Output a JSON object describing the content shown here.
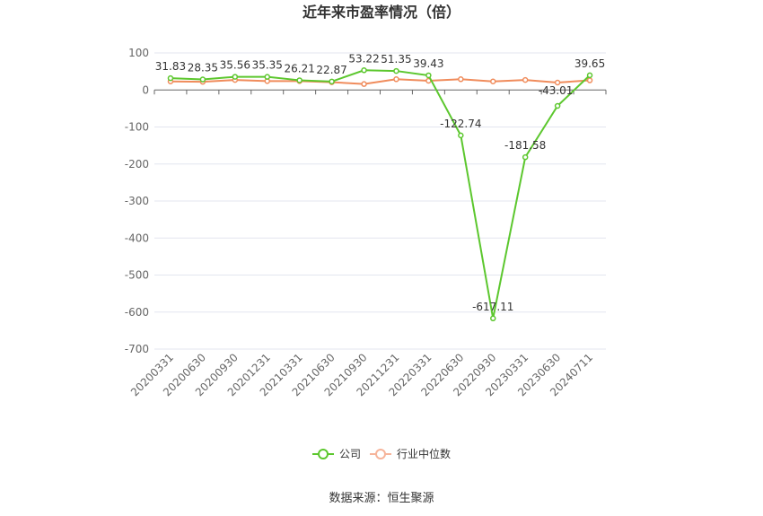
{
  "chart_data": {
    "type": "line",
    "title": "近年来市盈率情况（倍）",
    "categories": [
      "20200331",
      "20200630",
      "20200930",
      "20201231",
      "20210331",
      "20210630",
      "20210930",
      "20211231",
      "20220331",
      "20220630",
      "20220930",
      "20230331",
      "20230630",
      "20240711"
    ],
    "series": [
      {
        "name": "公司",
        "color": "#5cc72e",
        "values": [
          31.83,
          28.35,
          35.56,
          35.35,
          26.21,
          22.87,
          53.22,
          51.35,
          39.43,
          -122.74,
          -617.11,
          -181.58,
          -43.01,
          39.65
        ],
        "labels": [
          "31.83",
          "28.35",
          "35.56",
          "35.35",
          "26.21",
          "22.87",
          "53.22",
          "51.35",
          "39.43",
          "-122.74",
          "-617.11",
          "-181.58",
          "-43.01",
          "39.65"
        ]
      },
      {
        "name": "行业中位数",
        "color": "#f08c5c",
        "values": [
          23,
          22,
          27,
          24,
          24,
          21,
          16,
          29,
          25,
          29,
          23,
          27,
          20,
          26
        ]
      }
    ],
    "ylim": [
      -700,
      100
    ],
    "yticks": [
      100,
      0,
      -100,
      -200,
      -300,
      -400,
      -500,
      -600,
      -700
    ],
    "grid": true,
    "legend": "bottom-center"
  },
  "footer": {
    "source": "数据来源：恒生聚源"
  }
}
